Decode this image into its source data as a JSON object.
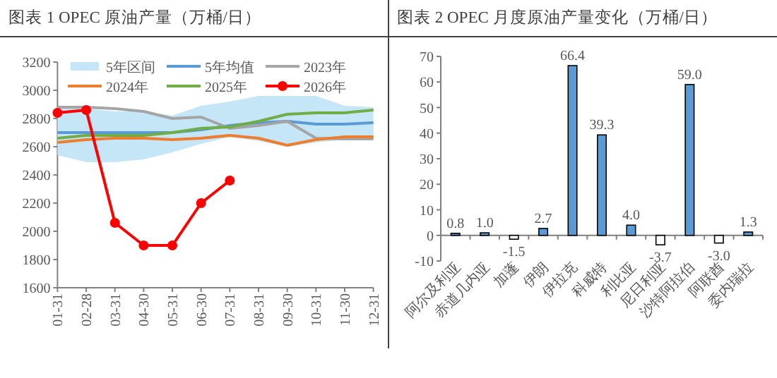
{
  "chart_data": [
    {
      "type": "line",
      "title": "图表 1 OPEC 原油产量（万桶/日）",
      "categories": [
        "01-31",
        "02-28",
        "03-31",
        "04-30",
        "05-31",
        "06-30",
        "07-31",
        "08-31",
        "09-30",
        "10-31",
        "11-30",
        "12-31"
      ],
      "ylim": [
        1600,
        3200
      ],
      "yticks": [
        1600,
        1800,
        2000,
        2200,
        2400,
        2600,
        2800,
        3000,
        3200
      ],
      "legend": "top",
      "series": [
        {
          "name": "5年区间",
          "type": "area",
          "color": "#c5e6f7",
          "values": [
            null,
            null,
            null,
            null,
            null,
            null,
            null,
            null,
            null,
            null,
            null,
            null
          ]
        },
        {
          "name": "5年均值",
          "color": "#5b9bd5",
          "marker": "none",
          "values": [
            2700,
            2700,
            2700,
            2700,
            2700,
            2720,
            2750,
            2770,
            2780,
            2760,
            2760,
            2770
          ],
          "lower": [
            2540,
            2490,
            2490,
            2510,
            2560,
            2620,
            2670,
            2640,
            2600,
            2630,
            2650,
            2650
          ],
          "upper": [
            2880,
            2870,
            2850,
            2850,
            2820,
            2890,
            2920,
            2960,
            2960,
            2960,
            2890,
            2880
          ]
        },
        {
          "name": "2023年",
          "color": "#a5a5a5",
          "marker": "none",
          "values": [
            2880,
            2880,
            2870,
            2850,
            2800,
            2810,
            2730,
            2750,
            2780,
            2660,
            2655,
            2655
          ]
        },
        {
          "name": "2024年",
          "color": "#ed7d31",
          "marker": "none",
          "values": [
            2630,
            2650,
            2660,
            2660,
            2650,
            2660,
            2680,
            2660,
            2610,
            2650,
            2670,
            2670
          ]
        },
        {
          "name": "2025年",
          "color": "#70ad47",
          "marker": "none",
          "values": [
            2660,
            2680,
            2680,
            2680,
            2700,
            2730,
            2740,
            2780,
            2830,
            2840,
            2840,
            2860
          ]
        },
        {
          "name": "2026年",
          "color": "#ff0000",
          "marker": "circle",
          "values": [
            2840,
            2860,
            2060,
            1900,
            1900,
            2200,
            2360,
            null,
            null,
            null,
            null,
            null
          ]
        }
      ]
    },
    {
      "type": "bar",
      "title": "图表 2 OPEC 月度原油产量变化（万桶/日）",
      "categories": [
        "阿尔及利亚",
        "赤道几内亚",
        "加蓬",
        "伊朗",
        "伊拉克",
        "科威特",
        "利比亚",
        "尼日利亚",
        "沙特阿拉伯",
        "阿联酋",
        "委内瑞拉"
      ],
      "ylim": [
        -10,
        70
      ],
      "yticks": [
        -10,
        0,
        10,
        20,
        30,
        40,
        50,
        60,
        70
      ],
      "values": [
        0.8,
        1.0,
        -1.5,
        2.7,
        66.4,
        39.3,
        4.0,
        -3.7,
        59.0,
        -3.0,
        1.3
      ],
      "value_labels": [
        "0.8",
        "1.0",
        "-1.5",
        "2.7",
        "66.4",
        "39.3",
        "4.0",
        "-3.7",
        "59.0",
        "-3.0",
        "1.3"
      ],
      "colors": [
        "#5b9bd5",
        "#5b9bd5",
        "#ffffff",
        "#5b9bd5",
        "#5b9bd5",
        "#5b9bd5",
        "#5b9bd5",
        "#ffffff",
        "#5b9bd5",
        "#ffffff",
        "#5b9bd5"
      ]
    }
  ]
}
